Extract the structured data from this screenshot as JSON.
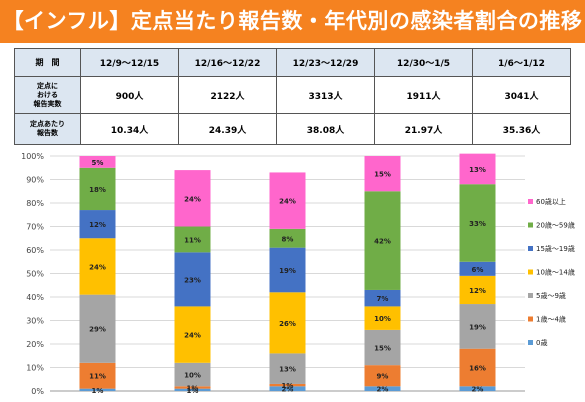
{
  "title": "【インフル】定点当たり報告数・年代別の感染者割合の推移",
  "table": {
    "header_label": "期　間",
    "periods": [
      "12/9～12/15",
      "12/16～12/22",
      "12/23～12/29",
      "12/30～1/5",
      "1/6～1/12"
    ],
    "rows": [
      {
        "label": [
          "定点に",
          "おける",
          "報告実数"
        ],
        "values": [
          "900人",
          "2122人",
          "3313人",
          "1911人",
          "3041人"
        ]
      },
      {
        "label": [
          "定点あたり",
          "報告数"
        ],
        "values": [
          "10.34人",
          "24.39人",
          "38.08人",
          "21.97人",
          "35.36人"
        ]
      }
    ]
  },
  "chart_data": {
    "type": "bar",
    "stacked": true,
    "categories": [
      "12/9～12/15",
      "12/16～12/22",
      "12/23～12/29",
      "12/30～1/5",
      "1/6～1/12"
    ],
    "ylim": [
      0,
      100
    ],
    "yticks": [
      "0%",
      "10%",
      "20%",
      "30%",
      "40%",
      "50%",
      "60%",
      "70%",
      "80%",
      "90%",
      "100%"
    ],
    "legend_position": "right",
    "series": [
      {
        "name": "0歳",
        "color": "#5b9bd5",
        "values": [
          1,
          1,
          2,
          2,
          2
        ],
        "labels": [
          "1%",
          "1%",
          "2%",
          "2%",
          "2%"
        ]
      },
      {
        "name": "1歳～4歳",
        "color": "#ed7d31",
        "values": [
          11,
          1,
          1,
          9,
          16
        ],
        "labels": [
          "11%",
          "1%",
          "1%",
          "9%",
          "16%"
        ]
      },
      {
        "name": "5歳～9歳",
        "color": "#a5a5a5",
        "values": [
          29,
          10,
          13,
          15,
          19
        ],
        "labels": [
          "29%",
          "10%",
          "13%",
          "15%",
          "19%"
        ]
      },
      {
        "name": "10歳～14歳",
        "color": "#ffc000",
        "values": [
          24,
          24,
          26,
          10,
          12
        ],
        "labels": [
          "24%",
          "24%",
          "26%",
          "10%",
          "12%"
        ]
      },
      {
        "name": "15歳～19歳",
        "color": "#4472c4",
        "values": [
          12,
          23,
          19,
          7,
          6
        ],
        "labels": [
          "12%",
          "23%",
          "19%",
          "7%",
          "6%"
        ]
      },
      {
        "name": "20歳～59歳",
        "color": "#70ad47",
        "values": [
          18,
          11,
          8,
          42,
          33
        ],
        "labels": [
          "18%",
          "11%",
          "8%",
          "42%",
          "33%"
        ]
      },
      {
        "name": "60歳以上",
        "color": "#ff66cc",
        "values": [
          5,
          24,
          24,
          15,
          13
        ],
        "labels": [
          "5%",
          "24%",
          "24%",
          "15%",
          "13%"
        ]
      }
    ]
  }
}
